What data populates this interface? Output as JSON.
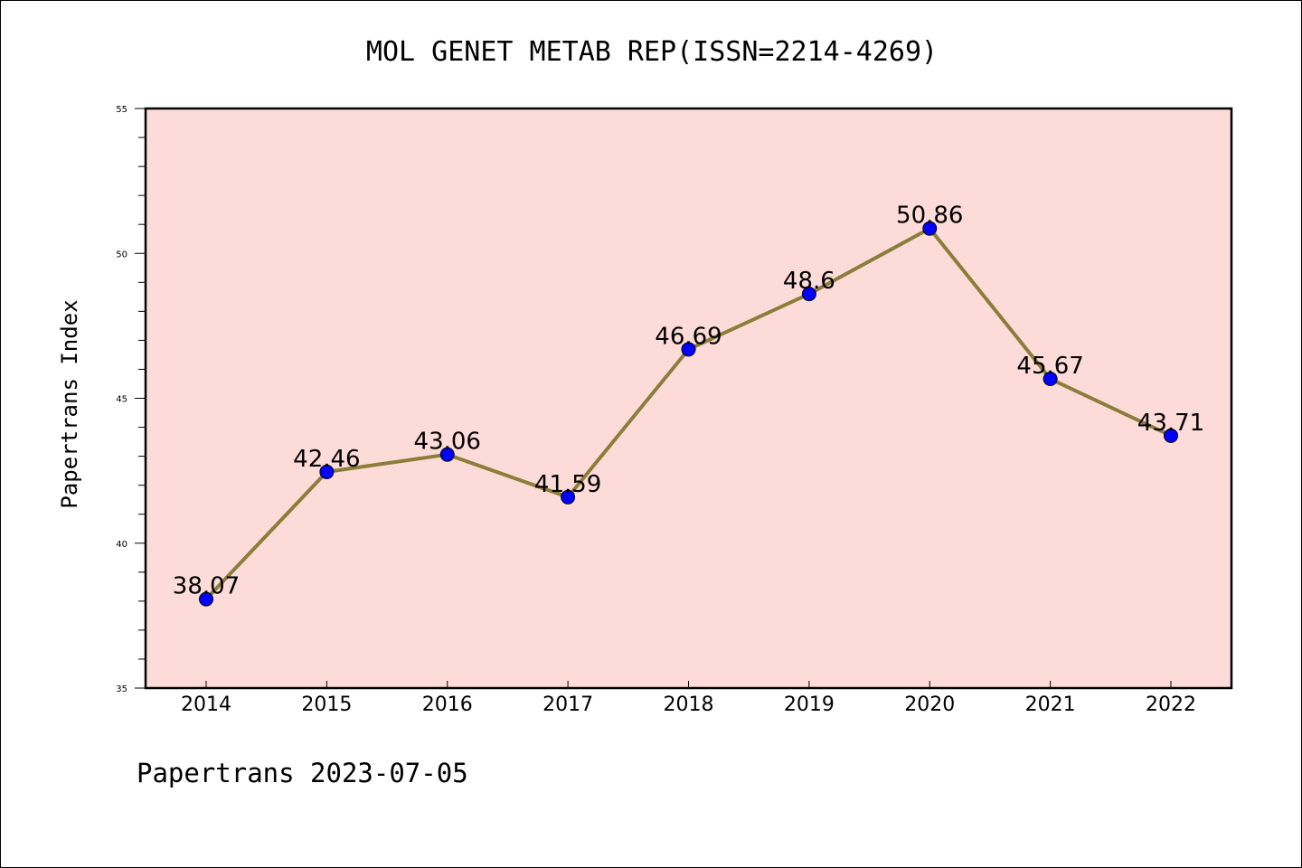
{
  "chart_data": {
    "type": "line",
    "title": "MOL GENET METAB REP(ISSN=2214-4269)",
    "xlabel": "",
    "ylabel": "Papertrans Index",
    "categories": [
      "2014",
      "2015",
      "2016",
      "2017",
      "2018",
      "2019",
      "2020",
      "2021",
      "2022"
    ],
    "values": [
      38.07,
      42.46,
      43.06,
      41.59,
      46.69,
      48.6,
      50.86,
      45.67,
      43.71
    ],
    "data_labels": [
      "38.07",
      "42.46",
      "43.06",
      "41.59",
      "46.69",
      "48.6",
      "50.86",
      "45.67",
      "43.71"
    ],
    "ylim": [
      35,
      55
    ],
    "yticks": [
      35,
      40,
      45,
      50,
      55
    ],
    "grid": false,
    "legend": "none"
  },
  "footer": {
    "text": "Papertrans 2023-07-05"
  },
  "colors": {
    "plot_background": "#fddbd8",
    "line": "#8b7d3a",
    "marker": "#0000ff",
    "axis": "#000000"
  }
}
